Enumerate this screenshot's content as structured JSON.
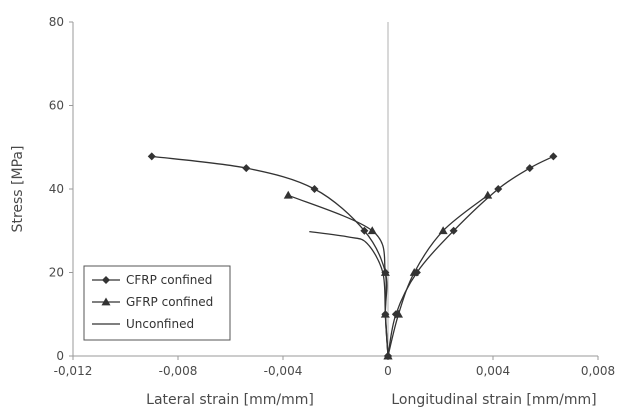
{
  "chart_data": {
    "type": "line",
    "ylabel": "Stress [MPa]",
    "xlabel_left": "Lateral strain [mm/mm]",
    "xlabel_right": "Longitudinal strain [mm/mm]",
    "xlim": [
      -0.012,
      0.008
    ],
    "ylim": [
      0,
      80
    ],
    "x_ticks": [
      -0.012,
      -0.008,
      -0.004,
      0,
      0.004,
      0.008
    ],
    "x_tick_labels": [
      "-0,012",
      "-0,008",
      "-0,004",
      "0",
      "0,004",
      "0,008"
    ],
    "y_ticks": [
      0,
      20,
      40,
      60,
      80
    ],
    "y_tick_labels": [
      "0",
      "20",
      "40",
      "60",
      "80"
    ],
    "grid": false,
    "legend_position": "bottom-left",
    "colors": {
      "series": "#333333",
      "zero_line": "#b0b0b0",
      "axis": "#9a9a9a"
    },
    "series": [
      {
        "name": "CFRP confined",
        "marker": "diamond",
        "branches": [
          [
            [
              0,
              0
            ],
            [
              -0.0001,
              10
            ],
            [
              -0.0001,
              20
            ],
            [
              -0.0009,
              30
            ],
            [
              -0.0028,
              40
            ],
            [
              -0.0054,
              45
            ],
            [
              -0.009,
              47.8
            ]
          ],
          [
            [
              0,
              0
            ],
            [
              0.0003,
              10
            ],
            [
              0.0011,
              20
            ],
            [
              0.0025,
              30
            ],
            [
              0.0042,
              40
            ],
            [
              0.0054,
              45
            ],
            [
              0.0063,
              47.8
            ]
          ]
        ]
      },
      {
        "name": "GFRP confined",
        "marker": "triangle",
        "branches": [
          [
            [
              0,
              0
            ],
            [
              -0.0001,
              10
            ],
            [
              -0.0001,
              20
            ],
            [
              -0.0006,
              30
            ],
            [
              -0.0038,
              38.5
            ]
          ],
          [
            [
              0,
              0
            ],
            [
              0.0004,
              10
            ],
            [
              0.001,
              20
            ],
            [
              0.0021,
              30
            ],
            [
              0.0038,
              38.5
            ]
          ]
        ]
      },
      {
        "name": "Unconfined",
        "marker": "none",
        "branches": [
          [
            [
              0,
              0
            ],
            [
              -0.0001,
              10
            ],
            [
              -0.0002,
              20
            ],
            [
              -0.0008,
              27
            ],
            [
              -0.0015,
              28.5
            ],
            [
              -0.003,
              29.8
            ]
          ]
        ]
      }
    ]
  }
}
